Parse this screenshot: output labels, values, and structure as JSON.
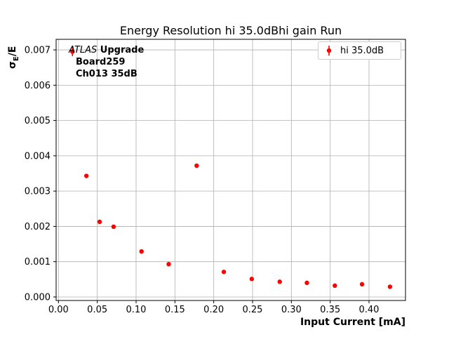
{
  "chart_data": {
    "type": "scatter",
    "title": "Energy Resolution hi 35.0dBhi gain Run",
    "xlabel": "Input Current [mA]",
    "ylabel": "σE/E",
    "ylabel_parts": {
      "sigma": "σ",
      "sub": "E",
      "rest": "/E"
    },
    "xlim": [
      -0.003,
      0.447
    ],
    "ylim": [
      -0.0001,
      0.0073
    ],
    "grid": true,
    "legend": {
      "label": "hi 35.0dB",
      "position": "upper right",
      "marker_color": "#ff0000"
    },
    "annotation": {
      "experiment": "ATLAS",
      "experiment_suffix": " Upgrade",
      "line2": "Board259",
      "line3": "Ch013 35dB"
    },
    "xticks": [
      {
        "v": 0.0,
        "label": "0.00"
      },
      {
        "v": 0.05,
        "label": "0.05"
      },
      {
        "v": 0.1,
        "label": "0.10"
      },
      {
        "v": 0.15,
        "label": "0.15"
      },
      {
        "v": 0.2,
        "label": "0.20"
      },
      {
        "v": 0.25,
        "label": "0.25"
      },
      {
        "v": 0.3,
        "label": "0.30"
      },
      {
        "v": 0.35,
        "label": "0.35"
      },
      {
        "v": 0.4,
        "label": "0.40"
      }
    ],
    "yticks": [
      {
        "v": 0.0,
        "label": "0.000"
      },
      {
        "v": 0.001,
        "label": "0.001"
      },
      {
        "v": 0.002,
        "label": "0.002"
      },
      {
        "v": 0.003,
        "label": "0.003"
      },
      {
        "v": 0.004,
        "label": "0.004"
      },
      {
        "v": 0.005,
        "label": "0.005"
      },
      {
        "v": 0.006,
        "label": "0.006"
      },
      {
        "v": 0.007,
        "label": "0.007"
      }
    ],
    "series": [
      {
        "name": "hi 35.0dB",
        "color": "#ff0000",
        "x": [
          0.018,
          0.036,
          0.053,
          0.071,
          0.107,
          0.142,
          0.178,
          0.213,
          0.249,
          0.285,
          0.32,
          0.356,
          0.391,
          0.427
        ],
        "y": [
          0.00695,
          0.00343,
          0.00213,
          0.00199,
          0.00129,
          0.00093,
          0.00372,
          0.00071,
          0.00051,
          0.00043,
          0.0004,
          0.00032,
          0.00036,
          0.00029
        ],
        "yerr": [
          0.00013,
          5e-05,
          4e-05,
          4e-05,
          3e-05,
          2e-05,
          3e-05,
          2e-05,
          1e-05,
          1e-05,
          1e-05,
          1e-05,
          1e-05,
          1e-05
        ]
      }
    ]
  },
  "colors": {
    "marker": "#ff0000",
    "grid": "#b0b0b0",
    "axes": "#000000",
    "legend_border": "#cccccc",
    "background": "#ffffff"
  }
}
